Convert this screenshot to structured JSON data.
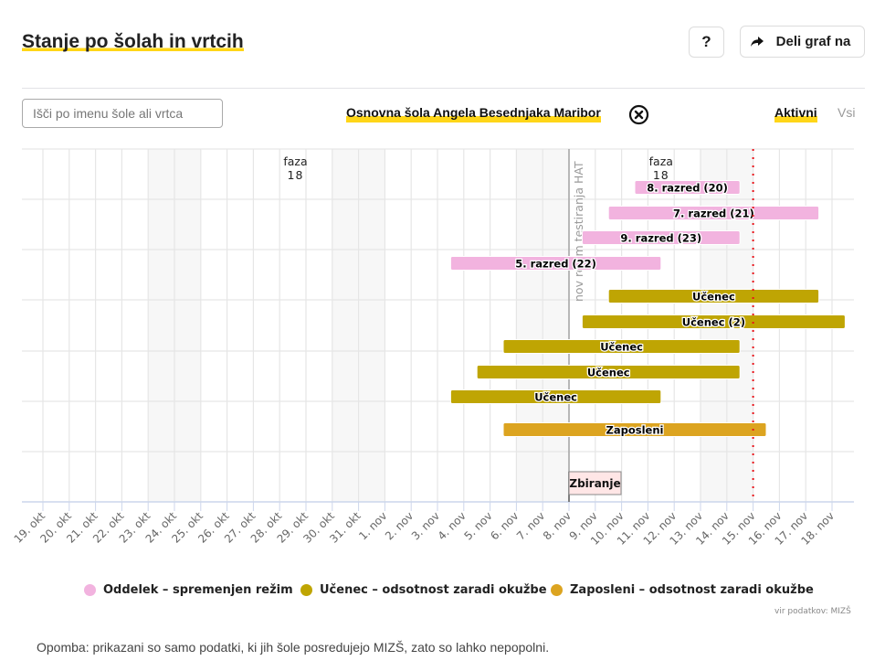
{
  "header": {
    "title": "Stanje po šolah in vrtcih",
    "help_label": "?",
    "share_label": "Deli graf na",
    "share_icon": "share-arrow-icon"
  },
  "controls": {
    "search_placeholder": "Išči po imenu šole ali vrtca",
    "search_value": "",
    "selected_school": "Osnovna šola Angela Besednjaka Maribor",
    "clear_icon": "circle-x-icon",
    "filters": [
      {
        "label": "Aktivni",
        "active": true
      },
      {
        "label": "Vsi",
        "active": false
      }
    ]
  },
  "colors": {
    "accent": "#ffd618",
    "oddelek": "#f2b3df",
    "ucenec": "#bfa503",
    "zaposleni": "#dca420",
    "today_line": "#e8141b",
    "weekend": "#f7f7f7",
    "grid": "#e6e6e6",
    "axis": "#ccd6eb",
    "event_box": "#ffe6e6"
  },
  "chart_data": {
    "type": "gantt",
    "title": "",
    "x_categories": [
      "19. okt",
      "20. okt",
      "21. okt",
      "22. okt",
      "23. okt",
      "24. okt",
      "25. okt",
      "26. okt",
      "27. okt",
      "28. okt",
      "29. okt",
      "30. okt",
      "31. okt",
      "1. nov",
      "2. nov",
      "3. nov",
      "4. nov",
      "5. nov",
      "6. nov",
      "7. nov",
      "8. nov",
      "9. nov",
      "10. nov",
      "11. nov",
      "12. nov",
      "13. nov",
      "14. nov",
      "15. nov",
      "16. nov",
      "17. nov",
      "18. nov"
    ],
    "weekend_bands": [
      [
        "23. okt",
        "25. okt"
      ],
      [
        "30. okt",
        "1. nov"
      ],
      [
        "6. nov",
        "8. nov"
      ],
      [
        "13. nov",
        "15. nov"
      ]
    ],
    "today": "15. nov",
    "rows": [
      {
        "label": "8. razred (20)",
        "category": "oddelek",
        "start": "11. nov",
        "end": "14. nov"
      },
      {
        "label": "7. razred (21)",
        "category": "oddelek",
        "start": "10. nov",
        "end": "17. nov"
      },
      {
        "label": "9. razred (23)",
        "category": "oddelek",
        "start": "9. nov",
        "end": "14. nov"
      },
      {
        "label": "5. razred (22)",
        "category": "oddelek",
        "start": "4. nov",
        "end": "11. nov"
      },
      {
        "label": "Učenec",
        "category": "ucenec",
        "start": "10. nov",
        "end": "17. nov"
      },
      {
        "label": "Učenec (2)",
        "category": "ucenec",
        "start": "9. nov",
        "end": "18. nov"
      },
      {
        "label": "Učenec",
        "category": "ucenec",
        "start": "6. nov",
        "end": "14. nov"
      },
      {
        "label": "Učenec",
        "category": "ucenec",
        "start": "5. nov",
        "end": "14. nov"
      },
      {
        "label": "Učenec",
        "category": "ucenec",
        "start": "4. nov",
        "end": "11. nov"
      },
      {
        "label": "Zaposleni",
        "category": "zaposleni",
        "start": "6. nov",
        "end": "15. nov"
      }
    ],
    "annotations": [
      {
        "type": "phase",
        "text_line1": "faza",
        "text_line2": "18",
        "at": 9.6
      },
      {
        "type": "phase",
        "text_line1": "faza",
        "text_line2": "18",
        "at": 23.5
      },
      {
        "type": "vertical-line",
        "text": "nov režim testiranja HAT",
        "at": "8. nov"
      },
      {
        "type": "flag",
        "text": "Zbiranje",
        "at": "8. nov"
      }
    ],
    "legend": [
      {
        "label": "Oddelek – spremenjen režim",
        "category": "oddelek"
      },
      {
        "label": "Učenec – odsotnost zaradi okužbe",
        "category": "ucenec"
      },
      {
        "label": "Zaposleni – odsotnost zaradi okužbe",
        "category": "zaposleni"
      }
    ],
    "legend_position": "bottom",
    "grid": true
  },
  "footer": {
    "source": "vir podatkov: MIZŠ",
    "note": "Opomba: prikazani so samo podatki, ki jih šole posredujejo MIZŠ, zato so lahko nepopolni."
  }
}
